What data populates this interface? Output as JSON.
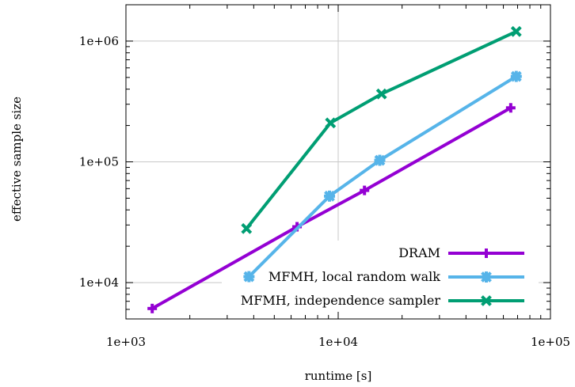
{
  "chart_data": {
    "type": "line",
    "xlabel": "runtime [s]",
    "ylabel": "effective sample size",
    "xscale": "log",
    "yscale": "log",
    "xlim": [
      1000,
      100000
    ],
    "ylim": [
      5000,
      2000000
    ],
    "x_ticks": [
      {
        "value": 1000,
        "label": "1e+03"
      },
      {
        "value": 10000,
        "label": "1e+04"
      },
      {
        "value": 100000,
        "label": "1e+05"
      }
    ],
    "y_ticks": [
      {
        "value": 10000,
        "label": "1e+04"
      },
      {
        "value": 100000,
        "label": "1e+05"
      },
      {
        "value": 1000000,
        "label": "1e+06"
      }
    ],
    "grid": "major ticks, partially hidden behind legend",
    "legend_position": "bottom-right",
    "series": [
      {
        "name": "DRAM",
        "color": "#9400d3",
        "marker": "plus",
        "x": [
          1330,
          6400,
          13300,
          65000
        ],
        "y": [
          6100,
          29000,
          58000,
          280000
        ]
      },
      {
        "name": "MFMH, local random walk",
        "color": "#56b4e9",
        "marker": "cross-boxed",
        "x": [
          3800,
          9100,
          15700,
          69000
        ],
        "y": [
          11200,
          52000,
          103000,
          510000
        ]
      },
      {
        "name": "MFMH, independence sampler",
        "color": "#009e73",
        "marker": "cross",
        "x": [
          3700,
          9200,
          16000,
          69000
        ],
        "y": [
          28000,
          210000,
          365000,
          1200000
        ]
      }
    ]
  }
}
